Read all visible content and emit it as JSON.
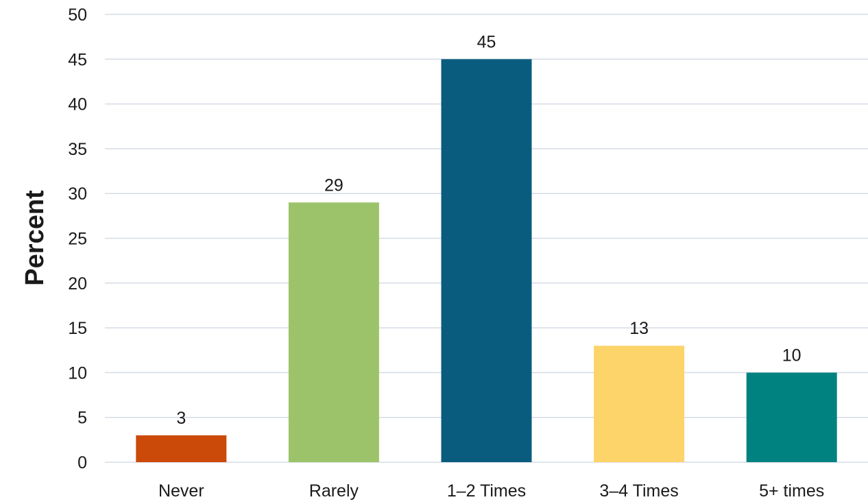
{
  "chart_data": {
    "type": "bar",
    "title": "",
    "xlabel": "",
    "ylabel": "Percent",
    "ylim": [
      0,
      50
    ],
    "yticks": [
      0,
      5,
      10,
      15,
      20,
      25,
      30,
      35,
      40,
      45,
      50
    ],
    "grid": true,
    "legend": "none",
    "categories": [
      "Never",
      "Rarely",
      "1–2 Times",
      "3–4 Times",
      "5+ times"
    ],
    "values": [
      3,
      29,
      45,
      13,
      10
    ],
    "data_labels": [
      "3",
      "29",
      "45",
      "13",
      "10"
    ],
    "colors": [
      "#cc4a09",
      "#9dc36a",
      "#0a5c7e",
      "#fdd46a",
      "#008281"
    ]
  }
}
